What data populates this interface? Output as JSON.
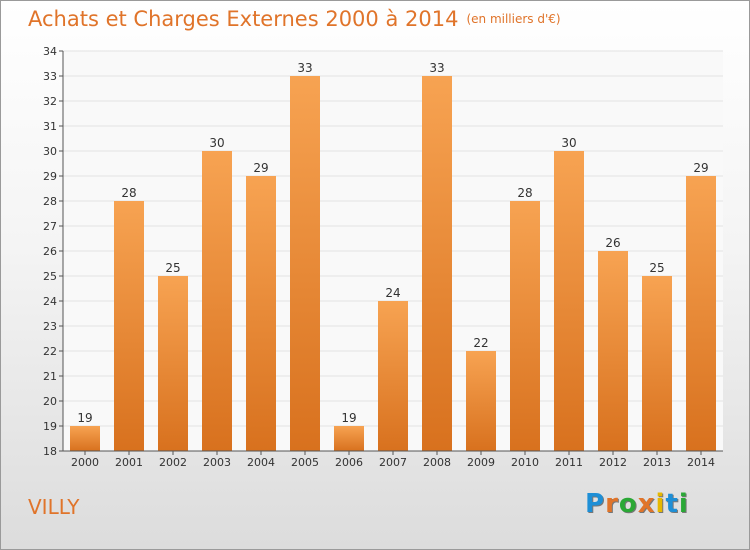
{
  "title": "Achats et Charges Externes 2000 à 2014",
  "subtitle": "(en milliers d'€)",
  "place": "VILLY",
  "logo": {
    "text": "Proxiti",
    "colors": [
      "#1e8fd6",
      "#e0742a",
      "#2aa836",
      "#e0742a",
      "#e6b800",
      "#1e8fd6",
      "#2aa836"
    ]
  },
  "chart_data": {
    "type": "bar",
    "categories": [
      "2000",
      "2001",
      "2002",
      "2003",
      "2004",
      "2005",
      "2006",
      "2007",
      "2008",
      "2009",
      "2010",
      "2011",
      "2012",
      "2013",
      "2014"
    ],
    "values": [
      19,
      28,
      25,
      30,
      29,
      33,
      19,
      24,
      33,
      22,
      28,
      30,
      26,
      25,
      29
    ],
    "ylim": [
      18,
      34
    ],
    "yticks": [
      18,
      19,
      20,
      21,
      22,
      23,
      24,
      25,
      26,
      27,
      28,
      29,
      30,
      31,
      32,
      33,
      34
    ],
    "grid": true,
    "colors": {
      "bar_light": "#f7a352",
      "bar_dark": "#d8711e",
      "grid": "#e2e2e2",
      "axis": "#555555"
    }
  }
}
